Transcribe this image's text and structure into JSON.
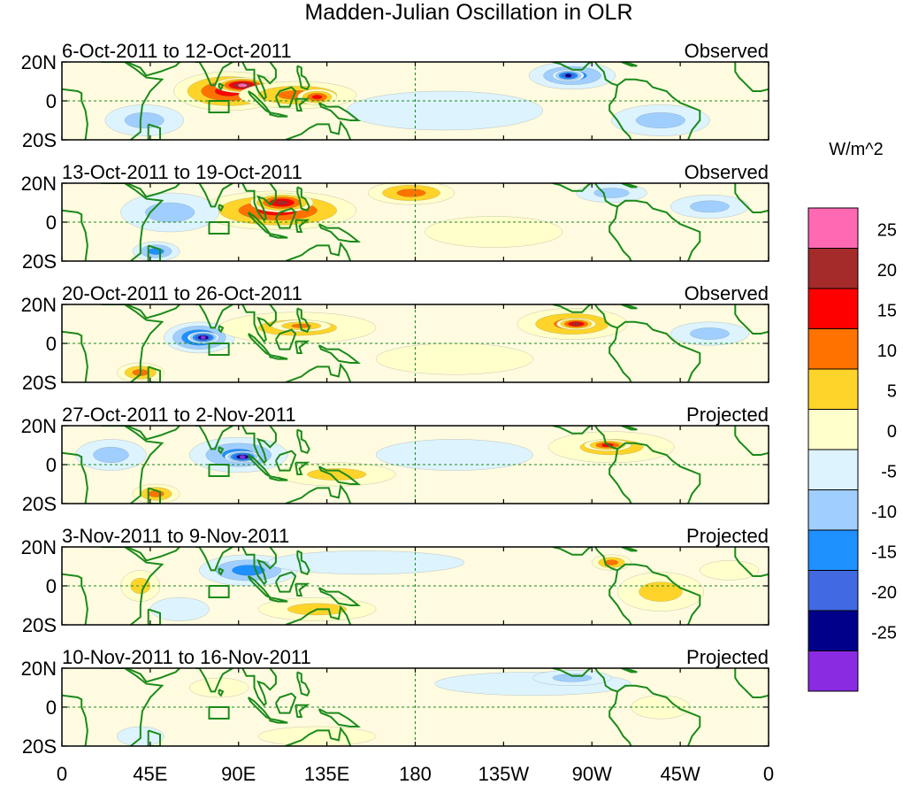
{
  "title": "Madden-Julian Oscillation in OLR",
  "units": "W/m^2",
  "lat_labels": [
    "20N",
    "0",
    "20S"
  ],
  "lon_labels": [
    "0",
    "45E",
    "90E",
    "135E",
    "180",
    "135W",
    "90W",
    "45W",
    "0"
  ],
  "panels": [
    {
      "date_range": "6-Oct-2011 to 12-Oct-2011",
      "status": "Observed"
    },
    {
      "date_range": "13-Oct-2011 to 19-Oct-2011",
      "status": "Observed"
    },
    {
      "date_range": "20-Oct-2011 to 26-Oct-2011",
      "status": "Observed"
    },
    {
      "date_range": "27-Oct-2011 to 2-Nov-2011",
      "status": "Projected"
    },
    {
      "date_range": "3-Nov-2011 to 9-Nov-2011",
      "status": "Projected"
    },
    {
      "date_range": "10-Nov-2011 to 16-Nov-2011",
      "status": "Projected"
    }
  ],
  "colorbar": {
    "labels": [
      "25",
      "20",
      "15",
      "10",
      "5",
      "0",
      "-5",
      "-10",
      "-15",
      "-20",
      "-25"
    ],
    "colors": [
      "#ff69b4",
      "#a52a2a",
      "#ff0000",
      "#ff7200",
      "#ffd42a",
      "#ffffcc",
      "#ddf4ff",
      "#a0cfff",
      "#1e90ff",
      "#4169e1",
      "#00008b",
      "#8a2be2"
    ]
  },
  "coast_color": "#1a8a1a",
  "anomalies": [
    [
      {
        "lon": 85,
        "lat": 5,
        "rlon": 28,
        "rlat": 10,
        "v": 20
      },
      {
        "lon": 92,
        "lat": 8,
        "rlon": 14,
        "rlat": 4,
        "v": 27
      },
      {
        "lon": 120,
        "lat": 3,
        "rlon": 30,
        "rlat": 7,
        "v": 12
      },
      {
        "lon": 130,
        "lat": 2,
        "rlon": 10,
        "rlat": 4,
        "v": 18
      },
      {
        "lon": 260,
        "lat": 13,
        "rlon": 22,
        "rlat": 7,
        "v": -12
      },
      {
        "lon": 258,
        "lat": 13,
        "rlon": 8,
        "rlat": 3,
        "v": -22
      },
      {
        "lon": 42,
        "lat": -10,
        "rlon": 20,
        "rlat": 8,
        "v": -8
      },
      {
        "lon": 195,
        "lat": -5,
        "rlon": 50,
        "rlat": 10,
        "v": -3
      },
      {
        "lon": 305,
        "lat": -10,
        "rlon": 25,
        "rlat": 8,
        "v": -6
      }
    ],
    [
      {
        "lon": 110,
        "lat": 6,
        "rlon": 40,
        "rlat": 10,
        "v": 18
      },
      {
        "lon": 112,
        "lat": 10,
        "rlon": 16,
        "rlat": 5,
        "v": 23
      },
      {
        "lon": 178,
        "lat": 15,
        "rlon": 22,
        "rlat": 6,
        "v": 12
      },
      {
        "lon": 55,
        "lat": 5,
        "rlon": 25,
        "rlat": 10,
        "v": -9
      },
      {
        "lon": 48,
        "lat": -15,
        "rlon": 12,
        "rlat": 5,
        "v": -14
      },
      {
        "lon": 330,
        "lat": 8,
        "rlon": 20,
        "rlat": 6,
        "v": -10
      },
      {
        "lon": 280,
        "lat": 15,
        "rlon": 18,
        "rlat": 5,
        "v": -8
      },
      {
        "lon": 220,
        "lat": -5,
        "rlon": 35,
        "rlat": 8,
        "v": 4
      }
    ],
    [
      {
        "lon": 70,
        "lat": 3,
        "rlon": 18,
        "rlat": 8,
        "v": -18
      },
      {
        "lon": 72,
        "lat": 3,
        "rlon": 8,
        "rlat": 3,
        "v": -27
      },
      {
        "lon": 120,
        "lat": 8,
        "rlon": 40,
        "rlat": 8,
        "v": 10
      },
      {
        "lon": 122,
        "lat": 9,
        "rlon": 15,
        "rlat": 3,
        "v": 15
      },
      {
        "lon": 260,
        "lat": 10,
        "rlon": 28,
        "rlat": 8,
        "v": 14
      },
      {
        "lon": 262,
        "lat": 10,
        "rlon": 10,
        "rlat": 3,
        "v": 22
      },
      {
        "lon": 40,
        "lat": -15,
        "rlon": 12,
        "rlat": 5,
        "v": 12
      },
      {
        "lon": 200,
        "lat": -8,
        "rlon": 40,
        "rlat": 8,
        "v": 3
      },
      {
        "lon": 330,
        "lat": 5,
        "rlon": 20,
        "rlat": 6,
        "v": -8
      }
    ],
    [
      {
        "lon": 90,
        "lat": 5,
        "rlon": 25,
        "rlat": 9,
        "v": -15
      },
      {
        "lon": 92,
        "lat": 4,
        "rlon": 9,
        "rlat": 3,
        "v": -27
      },
      {
        "lon": 280,
        "lat": 9,
        "rlon": 32,
        "rlat": 8,
        "v": 10
      },
      {
        "lon": 278,
        "lat": 10,
        "rlon": 12,
        "rlat": 3,
        "v": 18
      },
      {
        "lon": 48,
        "lat": -15,
        "rlon": 12,
        "rlat": 5,
        "v": 12
      },
      {
        "lon": 140,
        "lat": -5,
        "rlon": 30,
        "rlat": 6,
        "v": 6
      },
      {
        "lon": 25,
        "lat": 5,
        "rlon": 18,
        "rlat": 8,
        "v": -7
      },
      {
        "lon": 200,
        "lat": 5,
        "rlon": 40,
        "rlat": 8,
        "v": -3
      }
    ],
    [
      {
        "lon": 95,
        "lat": 8,
        "rlon": 25,
        "rlat": 8,
        "v": -12
      },
      {
        "lon": 155,
        "lat": 12,
        "rlon": 50,
        "rlat": 6,
        "v": -4
      },
      {
        "lon": 130,
        "lat": -12,
        "rlon": 30,
        "rlat": 6,
        "v": 7
      },
      {
        "lon": 305,
        "lat": -3,
        "rlon": 22,
        "rlat": 10,
        "v": 7
      },
      {
        "lon": 280,
        "lat": 12,
        "rlon": 10,
        "rlat": 4,
        "v": 12
      },
      {
        "lon": 40,
        "lat": 0,
        "rlon": 10,
        "rlat": 8,
        "v": 6
      },
      {
        "lon": 340,
        "lat": 8,
        "rlon": 15,
        "rlat": 5,
        "v": 5
      },
      {
        "lon": 60,
        "lat": -12,
        "rlon": 15,
        "rlat": 6,
        "v": -4
      }
    ],
    [
      {
        "lon": 240,
        "lat": 12,
        "rlon": 50,
        "rlat": 6,
        "v": -4
      },
      {
        "lon": 260,
        "lat": 15,
        "rlon": 20,
        "rlat": 4,
        "v": -7
      },
      {
        "lon": 80,
        "lat": 10,
        "rlon": 15,
        "rlat": 5,
        "v": 5
      },
      {
        "lon": 305,
        "lat": 0,
        "rlon": 15,
        "rlat": 6,
        "v": 5
      },
      {
        "lon": 130,
        "lat": -15,
        "rlon": 30,
        "rlat": 5,
        "v": 4
      },
      {
        "lon": 40,
        "lat": -15,
        "rlon": 12,
        "rlat": 5,
        "v": -4
      }
    ]
  ]
}
